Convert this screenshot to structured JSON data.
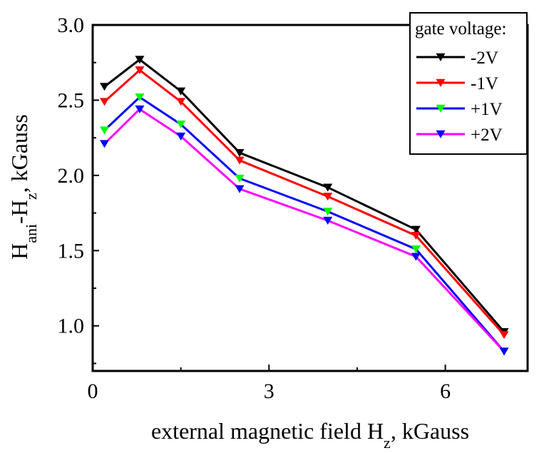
{
  "chart_data": {
    "type": "line",
    "x": [
      0.2,
      0.8,
      1.5,
      2.5,
      4.0,
      5.5,
      7.0
    ],
    "series": [
      {
        "name": "-2V",
        "line_color": "#000000",
        "marker_color": "#000000",
        "values": [
          2.59,
          2.77,
          2.56,
          2.15,
          1.92,
          1.64,
          0.96
        ]
      },
      {
        "name": "-1V",
        "line_color": "#ff0000",
        "marker_color": "#ff0000",
        "values": [
          2.49,
          2.7,
          2.49,
          2.1,
          1.86,
          1.6,
          0.94
        ]
      },
      {
        "name": "+1V",
        "line_color": "#0000ff",
        "marker_color": "#00ff00",
        "values": [
          2.3,
          2.52,
          2.34,
          1.98,
          1.76,
          1.51,
          0.83
        ]
      },
      {
        "name": "+2V",
        "line_color": "#ff00ff",
        "marker_color": "#0000ff",
        "values": [
          2.21,
          2.44,
          2.26,
          1.91,
          1.7,
          1.46,
          0.83
        ]
      }
    ],
    "xlim": [
      0,
      7.4
    ],
    "ylim": [
      0.7,
      3.0
    ],
    "x_ticks": [
      0,
      3,
      6
    ],
    "x_tick_labels": [
      "0",
      "3",
      "6"
    ],
    "y_ticks": [
      1.0,
      1.5,
      2.0,
      2.5,
      3.0
    ],
    "y_tick_labels": [
      "1.0",
      "1.5",
      "2.0",
      "2.5",
      "3.0"
    ],
    "xlabel": {
      "main": "external magnetic field H",
      "sub": "z",
      "tail": ", kGauss"
    },
    "ylabel": {
      "h1": "H",
      "sub1": "ani",
      "mid": "-H",
      "sub2": "z",
      "tail": ", kGauss"
    },
    "legend_title": "gate voltage:",
    "legend_position": "top-right",
    "marker": "down-triangle",
    "grid": false
  }
}
